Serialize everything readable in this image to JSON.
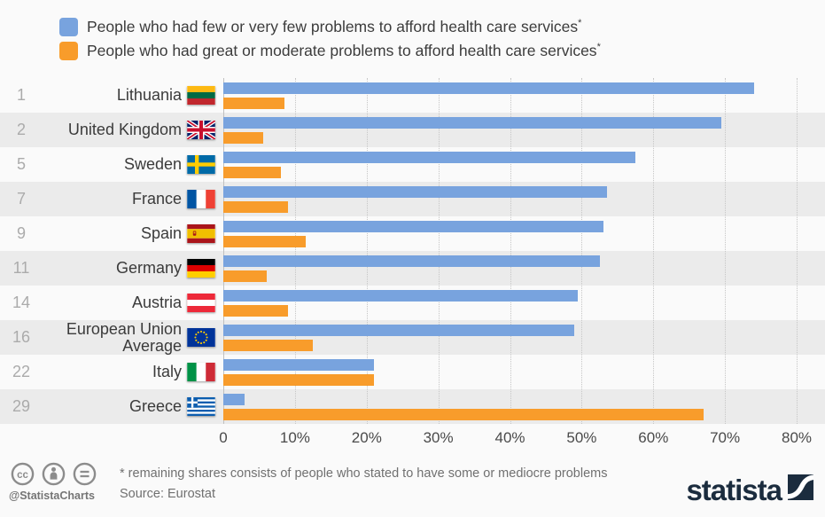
{
  "legend": {
    "items": [
      {
        "label": "People who had few or very few problems to afford health care services",
        "sup": "*",
        "color": "#78a3de"
      },
      {
        "label": "People who had great or moderate problems to afford health care services",
        "sup": "*",
        "color": "#f89c2b"
      }
    ]
  },
  "chart_data": {
    "type": "bar",
    "orientation": "horizontal",
    "title": "",
    "categories": [
      "Lithuania",
      "United Kingdom",
      "Sweden",
      "France",
      "Spain",
      "Germany",
      "Austria",
      "European Union Average",
      "Italy",
      "Greece"
    ],
    "ranks": [
      "1",
      "2",
      "5",
      "7",
      "9",
      "11",
      "14",
      "16",
      "22",
      "29"
    ],
    "flags": [
      "lithuania",
      "united-kingdom",
      "sweden",
      "france",
      "spain",
      "germany",
      "austria",
      "european-union",
      "italy",
      "greece"
    ],
    "series": [
      {
        "name": "People who had few or very few problems to afford health care services*",
        "color": "#78a3de",
        "values": [
          74,
          69.5,
          57.5,
          53.5,
          53,
          52.5,
          49.5,
          49,
          21,
          3
        ]
      },
      {
        "name": "People who had great or moderate problems to afford health care services*",
        "color": "#f89c2b",
        "values": [
          8.5,
          5.5,
          8,
          9,
          11.5,
          6,
          9,
          12.5,
          21,
          67
        ]
      }
    ],
    "unit": "%",
    "xlim": [
      0,
      80
    ],
    "x_ticks": [
      "0",
      "10%",
      "20%",
      "30%",
      "40%",
      "50%",
      "60%",
      "70%",
      "80%"
    ],
    "grid": "vertical-dotted",
    "legend_position": "top-left",
    "row_stripe_color": "#ebebeb",
    "background_color": "#fafafa"
  },
  "footer": {
    "handle": "@StatistaCharts",
    "footnote": "* remaining shares consists of people who stated to have some or mediocre problems",
    "source": "Source: Eurostat",
    "brand": "statista",
    "brand_color": "#1b2c3e"
  }
}
